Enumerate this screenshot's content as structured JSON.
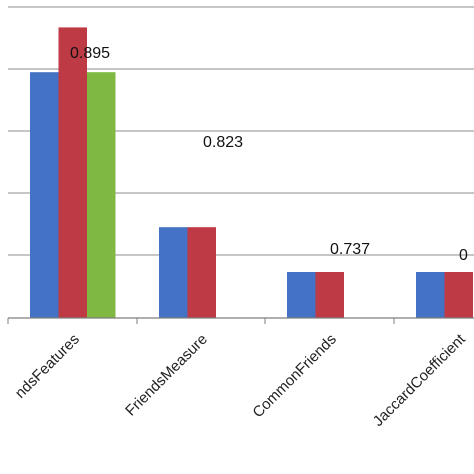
{
  "chart_data": {
    "type": "bar",
    "categories": [
      "ndsFeatures",
      "FriendsMeasure",
      "CommonFriends",
      "JaccardCoefficient"
    ],
    "series": [
      {
        "color": "#4472C4",
        "values": [
          0.884,
          0.846,
          0.835,
          0.835
        ]
      },
      {
        "color": "#BE3A44",
        "values": [
          0.895,
          0.846,
          0.835,
          0.835
        ]
      },
      {
        "color": "#7FB941",
        "values": [
          0.884,
          0.823,
          0.737,
          0.0
        ]
      }
    ],
    "data_labels": [
      "0.895",
      "0.823",
      "0.737",
      "0"
    ],
    "xlabel": "",
    "ylabel": "",
    "grid": true,
    "legend": "none"
  }
}
